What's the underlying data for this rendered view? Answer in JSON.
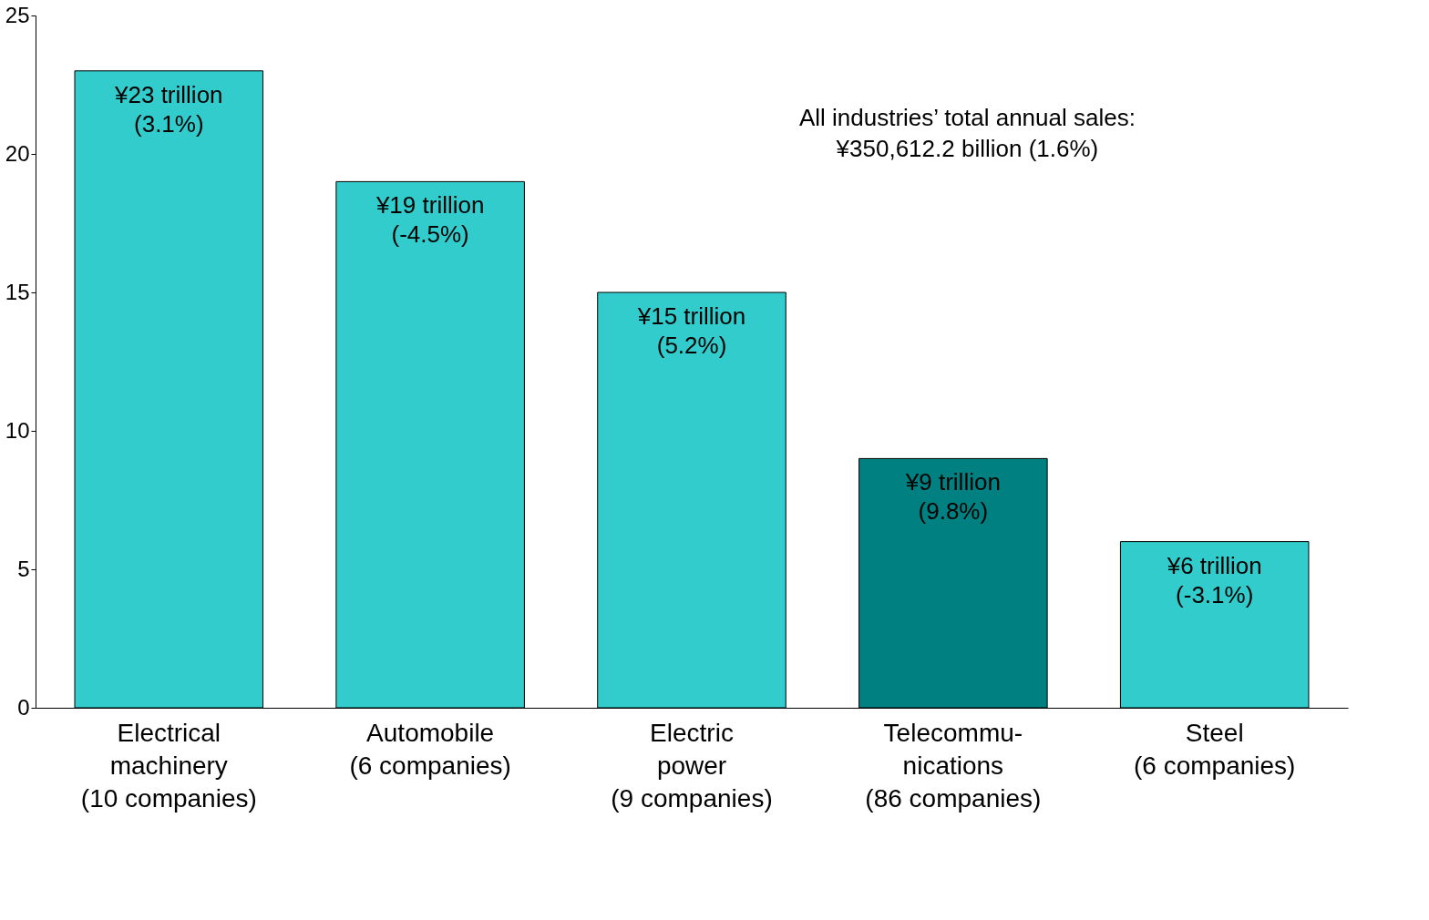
{
  "chart_data": {
    "type": "bar",
    "categories": [
      "Electrical\nmachinery\n(10 companies)",
      "Automobile\n(6 companies)",
      "Electric\npower\n(9 companies)",
      "Telecommu-\nnications\n(86 companies)",
      "Steel\n(6 companies)"
    ],
    "values": [
      23,
      19,
      15,
      9,
      6
    ],
    "colors": [
      "#33cccc",
      "#33cccc",
      "#33cccc",
      "#008080",
      "#33cccc"
    ],
    "value_labels": [
      "¥23 trillion\n(3.1%)",
      "¥19 trillion\n(-4.5%)",
      "¥15 trillion\n(5.2%)",
      "¥9 trillion\n(9.8%)",
      "¥6 trillion\n(-3.1%)"
    ],
    "ylim": [
      0,
      25
    ],
    "yticks": [
      0,
      5,
      10,
      15,
      20,
      25
    ],
    "annotations": [
      "All industries’ total annual sales:\n¥350,612.2 billion (1.6%)"
    ],
    "grid": false
  }
}
